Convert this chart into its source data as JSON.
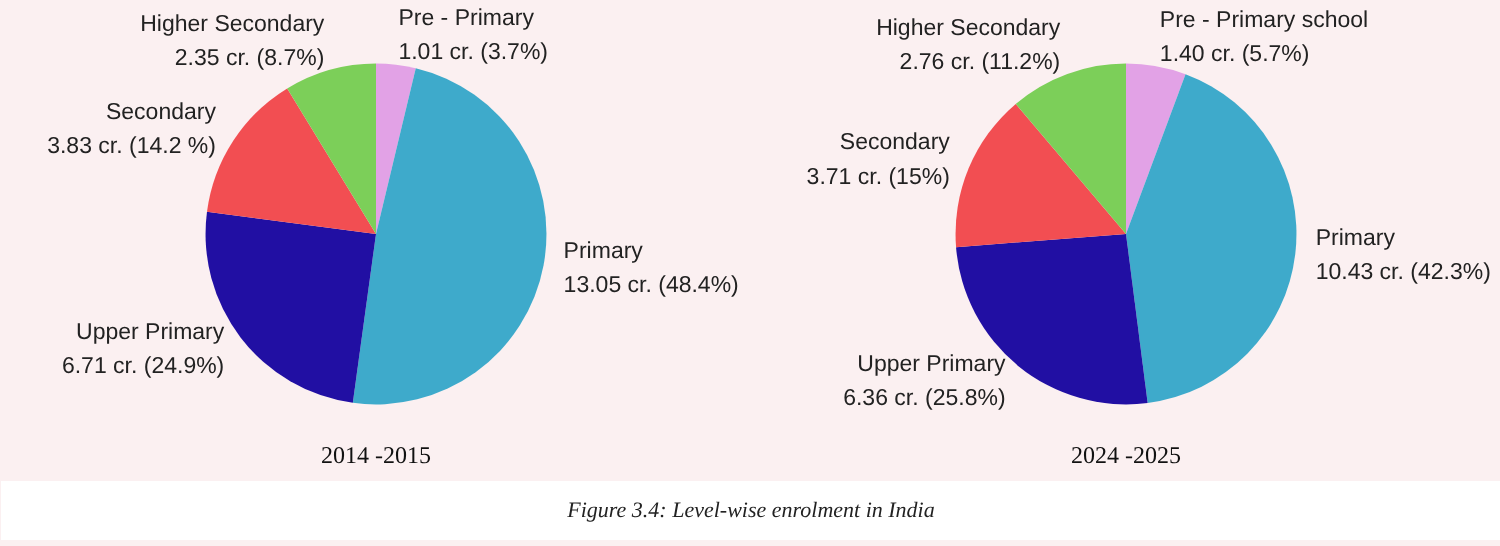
{
  "chart_data": [
    {
      "type": "pie",
      "title": "2014 -2015",
      "categories": [
        "Pre - Primary",
        "Primary",
        "Upper Primary",
        "Secondary",
        "Higher Secondary"
      ],
      "values": [
        1.01,
        13.05,
        6.71,
        3.83,
        2.35
      ],
      "value_labels": [
        "1.01 cr. (3.7%)",
        "13.05 cr. (48.4%)",
        "6.71 cr. (24.9%)",
        "3.83 cr. (14.2 %)",
        "2.35 cr. (8.7%)"
      ],
      "colors": [
        "#e2a2e6",
        "#3eaacb",
        "#210fa3",
        "#f24e52",
        "#7ccf59"
      ],
      "annotations": [
        "Figure 3.4: Level-wise enrolment in India"
      ]
    },
    {
      "type": "pie",
      "title": "2024 -2025",
      "categories": [
        "Pre - Primary school",
        "Primary",
        "Upper Primary",
        "Secondary",
        "Higher Secondary"
      ],
      "values": [
        1.4,
        10.43,
        6.36,
        3.71,
        2.76
      ],
      "value_labels": [
        "1.40 cr. (5.7%)",
        "10.43 cr. (42.3%)",
        "6.36 cr. (25.8%)",
        "3.71 cr. (15%)",
        "2.76 cr. (11.2%)"
      ],
      "colors": [
        "#e2a2e6",
        "#3eaacb",
        "#210fa3",
        "#f24e52",
        "#7ccf59"
      ]
    }
  ]
}
